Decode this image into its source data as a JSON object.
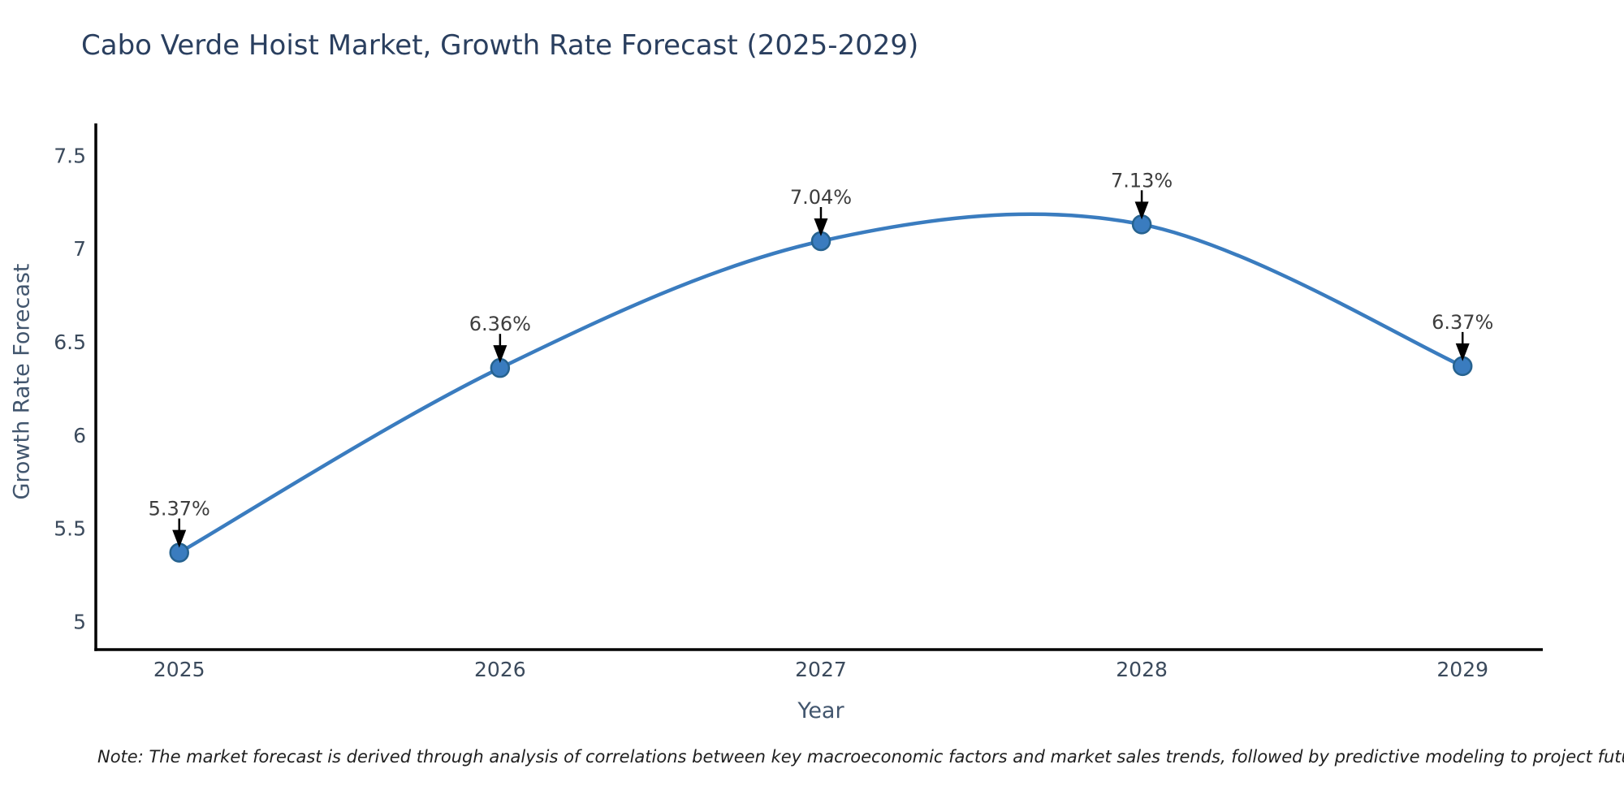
{
  "chart_data": {
    "type": "line",
    "title": "Cabo Verde Hoist Market, Growth Rate Forecast (2025-2029)",
    "xlabel": "Year",
    "ylabel": "Growth Rate Forecast",
    "x": [
      2025,
      2026,
      2027,
      2028,
      2029
    ],
    "values": [
      5.37,
      6.36,
      7.04,
      7.13,
      6.37
    ],
    "point_labels": [
      "5.37%",
      "6.36%",
      "7.04%",
      "7.13%",
      "6.37%"
    ],
    "x_tick_labels": [
      "2025",
      "2026",
      "2027",
      "2028",
      "2029"
    ],
    "y_ticks": [
      5,
      5.5,
      6,
      6.5,
      7,
      7.5
    ],
    "y_tick_labels": [
      "5",
      "5.5",
      "6",
      "6.5",
      "7",
      "7.5"
    ],
    "xlim": [
      2024.74,
      2029.25
    ],
    "ylim": [
      4.85,
      7.68
    ],
    "grid": false,
    "legend": null,
    "line_shape": "spline",
    "annotations_have_arrows": true,
    "colors": {
      "line": "#3a7cbf",
      "marker_fill": "#3a7cbf",
      "marker_edge": "#26628f",
      "arrow": "#000000",
      "axis_spine": "#000000",
      "title": "#2a3f5f",
      "tick_label": "#3b4a5c",
      "axis_title": "#42566e",
      "annotation_text": "#3d3d3d",
      "note_text": "#1f1f1f",
      "background": "#ffffff"
    }
  },
  "footnote": {
    "text": "Note: The market forecast is derived through analysis of correlations between key macroeconomic factors and market sales trends, followed by predictive modeling to project future sales"
  }
}
